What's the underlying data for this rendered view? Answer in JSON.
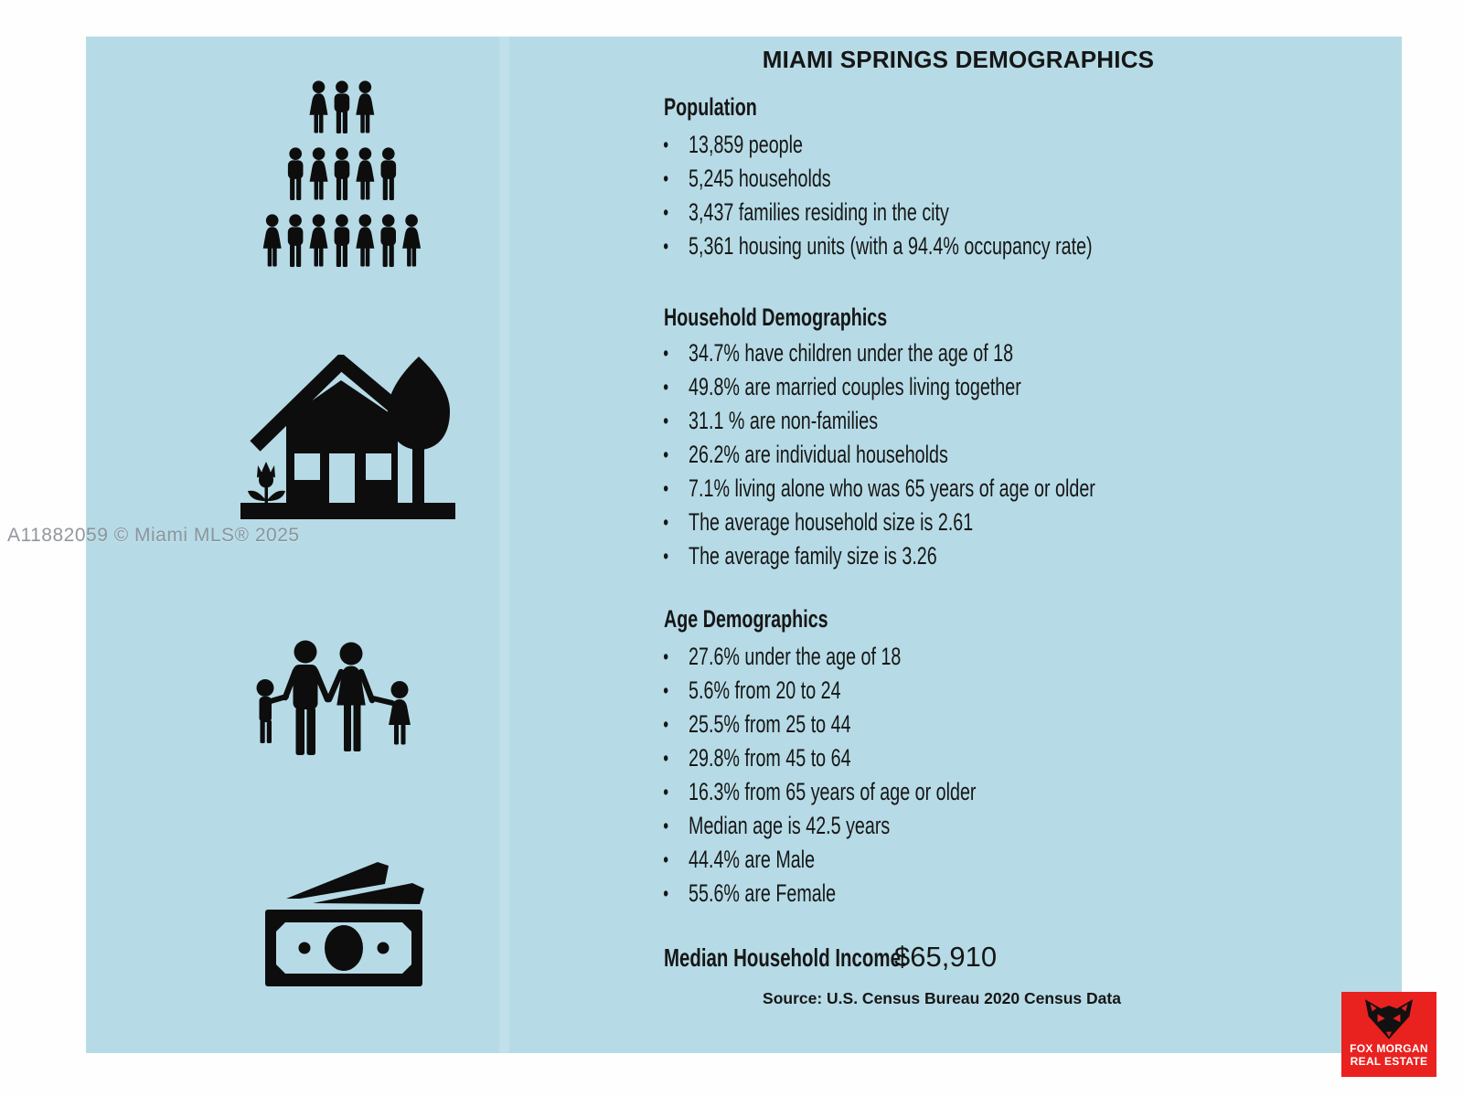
{
  "watermark": "A11882059 © Miami MLS® 2025",
  "title": "MIAMI SPRINGS DEMOGRAPHICS",
  "bullet_glyph": "•",
  "population": {
    "heading": "Population",
    "items": [
      "13,859 people",
      "5,245 households",
      "3,437 families residing in the city",
      "5,361 housing units (with a 94.4% occupancy rate)"
    ]
  },
  "household": {
    "heading": "Household Demographics",
    "items": [
      "34.7% have children under the age of 18",
      "49.8% are married couples living together",
      "31.1 % are non-families",
      "26.2% are individual households",
      "7.1% living alone who was 65 years of age or older",
      "The average household size is 2.61",
      "The average family size is 3.26"
    ]
  },
  "age": {
    "heading": "Age Demographics",
    "items": [
      "27.6% under the age of 18",
      "5.6% from 20 to 24",
      "25.5% from 25 to 44",
      "29.8% from 45 to 64",
      "16.3% from 65 years of age or older",
      "Median age is 42.5 years",
      "44.4% are Male",
      "55.6% are Female"
    ]
  },
  "income": {
    "label": "Median Household Income:",
    "value": "$65,910"
  },
  "source": "Source: U.S. Census Bureau 2020 Census Data",
  "logo": {
    "line1": "FOX MORGAN",
    "line2": "REAL ESTATE"
  },
  "colors": {
    "panel_blue": "#b6dbe6",
    "text_black": "#161616",
    "icon_black": "#0d0d0d",
    "watermark_gray": "#80868d",
    "logo_red": "#e9221f"
  }
}
